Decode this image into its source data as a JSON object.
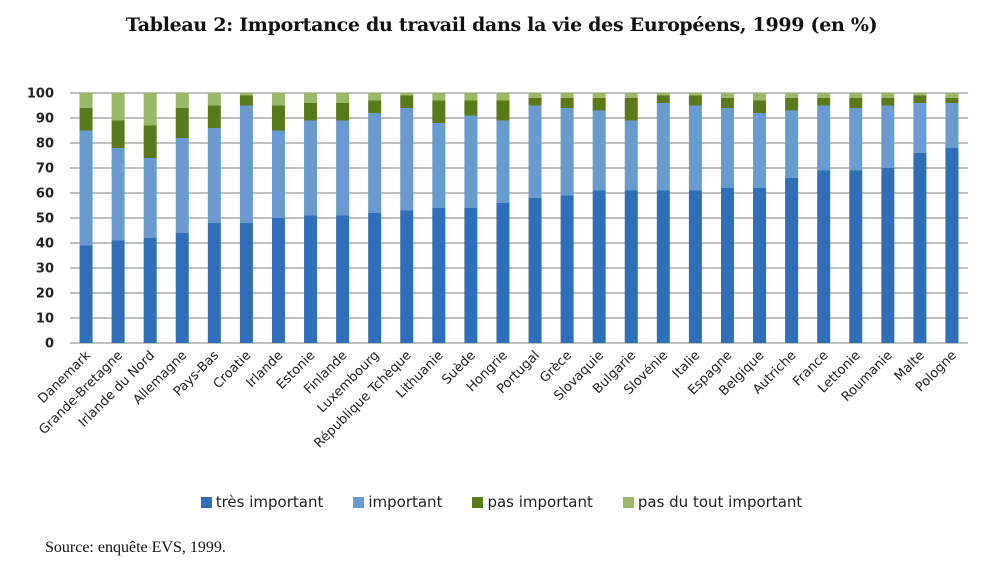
{
  "chart_data": {
    "type": "bar",
    "stacked": true,
    "title": "Tableau 2: Importance du travail dans la vie des Européens, 1999 (en %)",
    "xlabel": "",
    "ylabel": "",
    "ylim": [
      0,
      100
    ],
    "yticks": [
      0,
      10,
      20,
      30,
      40,
      50,
      60,
      70,
      80,
      90,
      100
    ],
    "grid": true,
    "legend_position": "bottom",
    "categories": [
      "Danemark",
      "Grande-Bretagne",
      "Irlande du Nord",
      "Allemagne",
      "Pays-Bas",
      "Croatie",
      "Irlande",
      "Estonie",
      "Finlande",
      "Luxembourg",
      "République Tchèque",
      "Lithuanie",
      "Suède",
      "Hongrie",
      "Portugal",
      "Grèce",
      "Slovaquie",
      "Bulgarie",
      "Slovénie",
      "Italie",
      "Espagne",
      "Belgique",
      "Autriche",
      "France",
      "Lettonie",
      "Roumanie",
      "Malte",
      "Pologne"
    ],
    "series": [
      {
        "name": "très important",
        "color": "#2f6fba",
        "values": [
          39,
          41,
          42,
          44,
          48,
          48,
          50,
          51,
          51,
          52,
          53,
          54,
          54,
          56,
          58,
          59,
          61,
          61,
          61,
          61,
          62,
          62,
          66,
          69,
          69,
          70,
          76,
          78
        ]
      },
      {
        "name": "important",
        "color": "#6a9bd0",
        "values": [
          46,
          37,
          32,
          38,
          38,
          47,
          35,
          38,
          38,
          40,
          41,
          34,
          37,
          33,
          37,
          35,
          32,
          28,
          35,
          34,
          32,
          30,
          27,
          26,
          25,
          25,
          20,
          18
        ]
      },
      {
        "name": "pas important",
        "color": "#5a7a1a",
        "values": [
          9,
          11,
          13,
          12,
          9,
          4,
          10,
          7,
          7,
          5,
          5,
          9,
          6,
          8,
          3,
          4,
          5,
          9,
          3,
          4,
          4,
          5,
          5,
          3,
          4,
          3,
          3,
          2
        ]
      },
      {
        "name": "pas du tout important",
        "color": "#9ab865",
        "values": [
          6,
          11,
          13,
          6,
          5,
          1,
          5,
          4,
          4,
          3,
          1,
          3,
          3,
          3,
          2,
          2,
          2,
          2,
          1,
          1,
          2,
          3,
          2,
          2,
          2,
          2,
          1,
          2
        ]
      }
    ]
  },
  "footer": {
    "source": "Source: enquête EVS, 1999."
  }
}
